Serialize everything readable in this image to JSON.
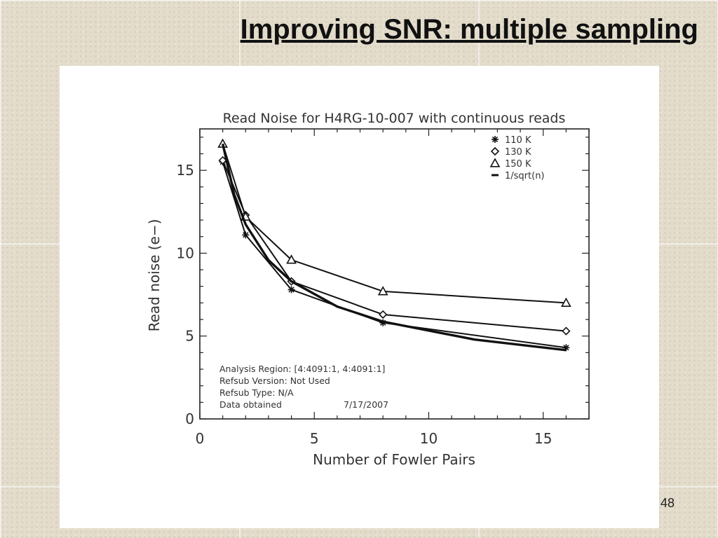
{
  "slide": {
    "title": "Improving SNR: multiple sampling",
    "page_number": "48"
  },
  "chart_data": {
    "type": "line",
    "title": "Read Noise for H4RG-10-007 with continuous reads",
    "xlabel": "Number of Fowler Pairs",
    "ylabel": "Read noise (e−)",
    "xlim": [
      0,
      17
    ],
    "ylim": [
      0,
      17.5
    ],
    "xticks": [
      0,
      5,
      10,
      15
    ],
    "yticks": [
      0,
      5,
      10,
      15
    ],
    "legend_position": "top-right",
    "series": [
      {
        "name": "110 K",
        "marker": "asterisk",
        "x": [
          1,
          2,
          4,
          8,
          16
        ],
        "y": [
          15.5,
          11.1,
          7.8,
          5.8,
          4.3
        ]
      },
      {
        "name": "130 K",
        "marker": "diamond",
        "x": [
          1,
          2,
          4,
          8,
          16
        ],
        "y": [
          15.6,
          12.3,
          8.3,
          6.3,
          5.3
        ]
      },
      {
        "name": "150 K",
        "marker": "triangle",
        "x": [
          1,
          2,
          4,
          8,
          16
        ],
        "y": [
          16.6,
          12.2,
          9.6,
          7.7,
          7.0
        ]
      },
      {
        "name": "1/sqrt(n)",
        "marker": "none",
        "thick": true,
        "x": [
          1,
          1.5,
          2,
          3,
          4,
          6,
          8,
          12,
          16
        ],
        "y": [
          16.6,
          13.55,
          11.74,
          9.58,
          8.3,
          6.78,
          5.87,
          4.79,
          4.15
        ]
      }
    ],
    "annotations": [
      "Analysis Region: [4:4091:1, 4:4091:1]",
      "Refsub Version: Not Used",
      "Refsub Type: N/A",
      "Data obtained"
    ],
    "annotation_date": "7/17/2007"
  }
}
